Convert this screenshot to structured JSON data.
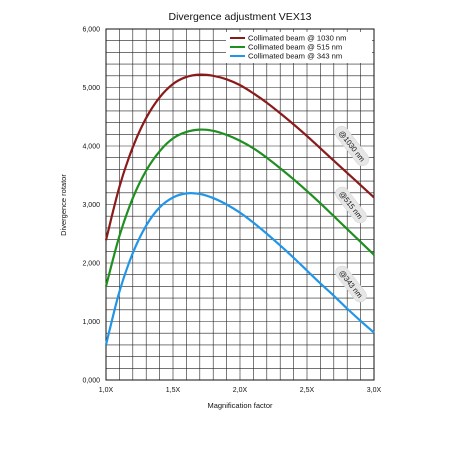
{
  "chart_data": {
    "type": "line",
    "title": "Divergence adjustment VEX13",
    "xlabel": "Magnification factor",
    "ylabel": "Divergence rotator",
    "xlim": [
      1.0,
      3.0
    ],
    "ylim": [
      0,
      6000
    ],
    "grid": true,
    "legend_position": "top-right",
    "x_ticks": [
      {
        "value": 1.0,
        "label": "1,0X"
      },
      {
        "value": 1.5,
        "label": "1,5X"
      },
      {
        "value": 2.0,
        "label": "2,0X"
      },
      {
        "value": 2.5,
        "label": "2,5X"
      },
      {
        "value": 3.0,
        "label": "3,0X"
      }
    ],
    "y_ticks": [
      {
        "value": 0,
        "label": "0,000"
      },
      {
        "value": 1000,
        "label": "1,000"
      },
      {
        "value": 2000,
        "label": "2,000"
      },
      {
        "value": 3000,
        "label": "3,000"
      },
      {
        "value": 4000,
        "label": "4,000"
      },
      {
        "value": 5000,
        "label": "5,000"
      },
      {
        "value": 6000,
        "label": "6,000"
      }
    ],
    "x": [
      1.0,
      1.1,
      1.2,
      1.3,
      1.4,
      1.5,
      1.6,
      1.7,
      1.8,
      1.9,
      2.0,
      2.1,
      2.2,
      2.3,
      2.4,
      2.5,
      2.6,
      2.7,
      2.8,
      2.9,
      3.0
    ],
    "series": [
      {
        "name": "Collimated beam @ 1030 nm",
        "color": "#8b1a1a",
        "values": [
          2390,
          3300,
          3980,
          4480,
          4830,
          5060,
          5180,
          5220,
          5200,
          5140,
          5040,
          4900,
          4740,
          4560,
          4370,
          4170,
          3960,
          3750,
          3540,
          3330,
          3120
        ],
        "annotation": "@1030 nm"
      },
      {
        "name": "Collimated beam @ 515 nm",
        "color": "#1f8f1f",
        "values": [
          1600,
          2460,
          3110,
          3580,
          3910,
          4130,
          4240,
          4280,
          4260,
          4190,
          4090,
          3960,
          3800,
          3620,
          3430,
          3230,
          3020,
          2800,
          2580,
          2360,
          2140
        ],
        "annotation": "@515 nm"
      },
      {
        "name": "Collimated beam @ 343 nm",
        "color": "#2196e8",
        "values": [
          600,
          1510,
          2170,
          2640,
          2950,
          3120,
          3190,
          3180,
          3110,
          3000,
          2860,
          2690,
          2500,
          2300,
          2090,
          1870,
          1650,
          1440,
          1220,
          1010,
          810
        ],
        "annotation": "@343 nm"
      }
    ]
  }
}
